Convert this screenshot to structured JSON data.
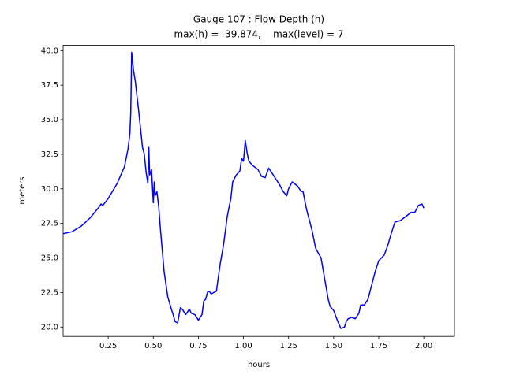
{
  "chart_data": {
    "type": "line",
    "title": "Gauge 107 : Flow Depth (h)",
    "subtitle": "max(h) =  39.874,    max(level) = 7",
    "x_label": "hours",
    "y_label": "meters",
    "xlim": [
      0.0,
      2.17
    ],
    "ylim": [
      19.32,
      40.38
    ],
    "xticks": [
      {
        "value": 0.25,
        "label": "0.25"
      },
      {
        "value": 0.5,
        "label": "0.50"
      },
      {
        "value": 0.75,
        "label": "0.75"
      },
      {
        "value": 1.0,
        "label": "1.00"
      },
      {
        "value": 1.25,
        "label": "1.25"
      },
      {
        "value": 1.5,
        "label": "1.50"
      },
      {
        "value": 1.75,
        "label": "1.75"
      },
      {
        "value": 2.0,
        "label": "2.00"
      }
    ],
    "yticks": [
      {
        "value": 20,
        "label": "20.0"
      },
      22.5,
      {
        "value": 25,
        "label": "25.0"
      },
      27.5,
      {
        "value": 30,
        "label": "30.0"
      },
      32.5,
      {
        "value": 35,
        "label": "35.0"
      },
      37.5,
      {
        "value": 40,
        "label": "40.0"
      }
    ],
    "series": [
      {
        "color": "#0000ff",
        "x": [
          0.0,
          0.05,
          0.1,
          0.15,
          0.2,
          0.21,
          0.22,
          0.25,
          0.3,
          0.34,
          0.36,
          0.37,
          0.375,
          0.38,
          0.39,
          0.4,
          0.42,
          0.44,
          0.45,
          0.46,
          0.47,
          0.475,
          0.48,
          0.49,
          0.5,
          0.505,
          0.51,
          0.52,
          0.53,
          0.54,
          0.56,
          0.58,
          0.6,
          0.61,
          0.62,
          0.635,
          0.65,
          0.66,
          0.68,
          0.7,
          0.71,
          0.73,
          0.75,
          0.77,
          0.78,
          0.79,
          0.8,
          0.81,
          0.82,
          0.85,
          0.87,
          0.89,
          0.91,
          0.93,
          0.94,
          0.96,
          0.98,
          0.99,
          1.0,
          1.01,
          1.02,
          1.03,
          1.05,
          1.08,
          1.1,
          1.12,
          1.14,
          1.16,
          1.18,
          1.2,
          1.22,
          1.24,
          1.25,
          1.27,
          1.3,
          1.32,
          1.33,
          1.35,
          1.38,
          1.4,
          1.43,
          1.45,
          1.47,
          1.48,
          1.5,
          1.52,
          1.54,
          1.56,
          1.57,
          1.58,
          1.6,
          1.62,
          1.64,
          1.65,
          1.67,
          1.69,
          1.71,
          1.73,
          1.75,
          1.78,
          1.8,
          1.82,
          1.84,
          1.87,
          1.89,
          1.91,
          1.93,
          1.95,
          1.97,
          1.99,
          2.0
        ],
        "values": [
          26.75,
          26.9,
          27.3,
          27.9,
          28.7,
          28.9,
          28.8,
          29.3,
          30.4,
          31.6,
          32.9,
          34.0,
          35.5,
          39.874,
          38.6,
          37.8,
          35.5,
          33.0,
          32.5,
          31.2,
          30.4,
          33.0,
          31.0,
          31.4,
          29.0,
          30.5,
          29.5,
          29.8,
          28.7,
          27.0,
          24.0,
          22.2,
          21.3,
          20.9,
          20.4,
          20.3,
          21.4,
          21.3,
          20.9,
          21.3,
          21.0,
          20.9,
          20.5,
          20.9,
          21.9,
          22.0,
          22.5,
          22.6,
          22.4,
          22.6,
          24.5,
          26.0,
          28.0,
          29.3,
          30.5,
          31.0,
          31.3,
          32.2,
          32.0,
          33.5,
          32.6,
          32.0,
          31.7,
          31.4,
          30.9,
          30.8,
          31.5,
          31.1,
          30.7,
          30.3,
          29.8,
          29.5,
          30.0,
          30.5,
          30.2,
          29.8,
          29.8,
          28.5,
          27.0,
          25.7,
          25.0,
          23.5,
          22.0,
          21.5,
          21.2,
          20.5,
          19.9,
          20.0,
          20.4,
          20.6,
          20.7,
          20.6,
          21.0,
          21.6,
          21.6,
          22.0,
          23.0,
          24.0,
          24.8,
          25.2,
          25.9,
          26.8,
          27.6,
          27.7,
          27.9,
          28.1,
          28.3,
          28.3,
          28.8,
          28.9,
          28.6
        ]
      }
    ]
  }
}
